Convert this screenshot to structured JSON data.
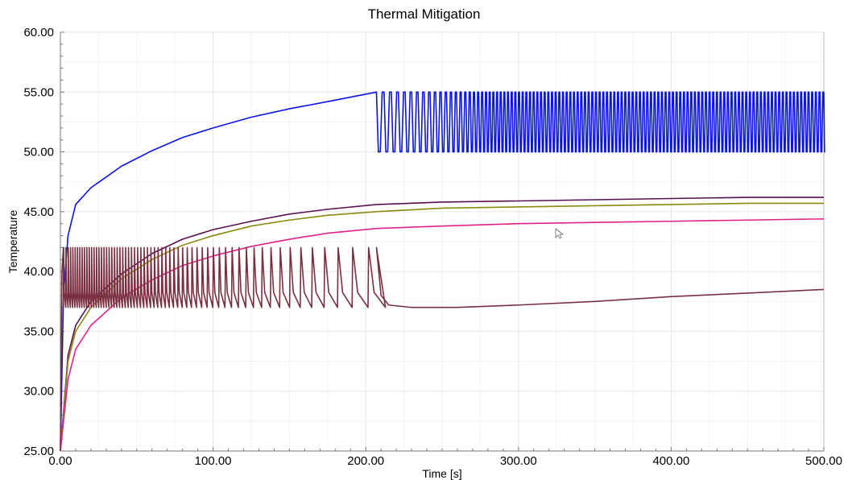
{
  "chart_data": {
    "type": "line",
    "title": "Thermal Mitigation",
    "xlabel": "Time [s]",
    "ylabel": "Temperature",
    "xlim": [
      0,
      500
    ],
    "ylim": [
      25,
      60
    ],
    "grid": true,
    "xticks": [
      "0.00",
      "100.00",
      "200.00",
      "300.00",
      "400.00",
      "500.00"
    ],
    "yticks": [
      "25.00",
      "30.00",
      "35.00",
      "40.00",
      "45.00",
      "50.00",
      "55.00",
      "60.00"
    ],
    "series": [
      {
        "color": "#0a14e6",
        "shape": "rise-then-oscillate",
        "points": [
          [
            0,
            25
          ],
          [
            2,
            38
          ],
          [
            5,
            43
          ],
          [
            10,
            45.6
          ],
          [
            20,
            47
          ],
          [
            40,
            48.8
          ],
          [
            60,
            50.1
          ],
          [
            80,
            51.2
          ],
          [
            100,
            52
          ],
          [
            125,
            52.9
          ],
          [
            150,
            53.6
          ],
          [
            175,
            54.2
          ],
          [
            207,
            55
          ]
        ],
        "oscillation": {
          "start": 207,
          "end": 500,
          "low": 50,
          "high": 55,
          "period_start": 2.5,
          "period_end": 1.2
        }
      },
      {
        "color": "#5a1050",
        "shape": "smooth",
        "points": [
          [
            0,
            25
          ],
          [
            5,
            33
          ],
          [
            10,
            35.5
          ],
          [
            20,
            37.5
          ],
          [
            40,
            39.8
          ],
          [
            60,
            41.5
          ],
          [
            80,
            42.7
          ],
          [
            100,
            43.5
          ],
          [
            125,
            44.2
          ],
          [
            150,
            44.8
          ],
          [
            175,
            45.2
          ],
          [
            207,
            45.6
          ],
          [
            250,
            45.8
          ],
          [
            300,
            45.9
          ],
          [
            350,
            46
          ],
          [
            400,
            46.1
          ],
          [
            450,
            46.2
          ],
          [
            500,
            46.2
          ]
        ]
      },
      {
        "color": "#8a8a10",
        "shape": "smooth",
        "points": [
          [
            0,
            25
          ],
          [
            5,
            32.5
          ],
          [
            10,
            35
          ],
          [
            20,
            37
          ],
          [
            40,
            39.4
          ],
          [
            60,
            41
          ],
          [
            80,
            42.2
          ],
          [
            100,
            43
          ],
          [
            125,
            43.8
          ],
          [
            150,
            44.3
          ],
          [
            175,
            44.7
          ],
          [
            207,
            45
          ],
          [
            250,
            45.3
          ],
          [
            300,
            45.4
          ],
          [
            350,
            45.5
          ],
          [
            400,
            45.6
          ],
          [
            450,
            45.7
          ],
          [
            500,
            45.7
          ]
        ]
      },
      {
        "color": "#e0208a",
        "shape": "smooth",
        "points": [
          [
            0,
            25
          ],
          [
            5,
            31
          ],
          [
            10,
            33.5
          ],
          [
            20,
            35.5
          ],
          [
            40,
            37.8
          ],
          [
            60,
            39.3
          ],
          [
            80,
            40.5
          ],
          [
            100,
            41.3
          ],
          [
            125,
            42.1
          ],
          [
            150,
            42.7
          ],
          [
            175,
            43.2
          ],
          [
            207,
            43.6
          ],
          [
            250,
            43.8
          ],
          [
            300,
            44
          ],
          [
            350,
            44.1
          ],
          [
            400,
            44.2
          ],
          [
            450,
            44.3
          ],
          [
            500,
            44.4
          ]
        ]
      },
      {
        "color": "#7a3040",
        "shape": "throttle-spikes",
        "points": [
          [
            0,
            25
          ],
          [
            1,
            40
          ],
          [
            2,
            42
          ]
        ],
        "spikes": {
          "start": 2,
          "end": 207,
          "low": 37,
          "high": 42,
          "period_start": 1.5,
          "period_end": 12
        },
        "tail": [
          [
            207,
            42
          ],
          [
            210,
            38
          ],
          [
            215,
            37.2
          ],
          [
            230,
            37
          ],
          [
            260,
            37
          ],
          [
            300,
            37.2
          ],
          [
            350,
            37.5
          ],
          [
            400,
            37.9
          ],
          [
            450,
            38.2
          ],
          [
            500,
            38.5
          ]
        ]
      }
    ]
  }
}
